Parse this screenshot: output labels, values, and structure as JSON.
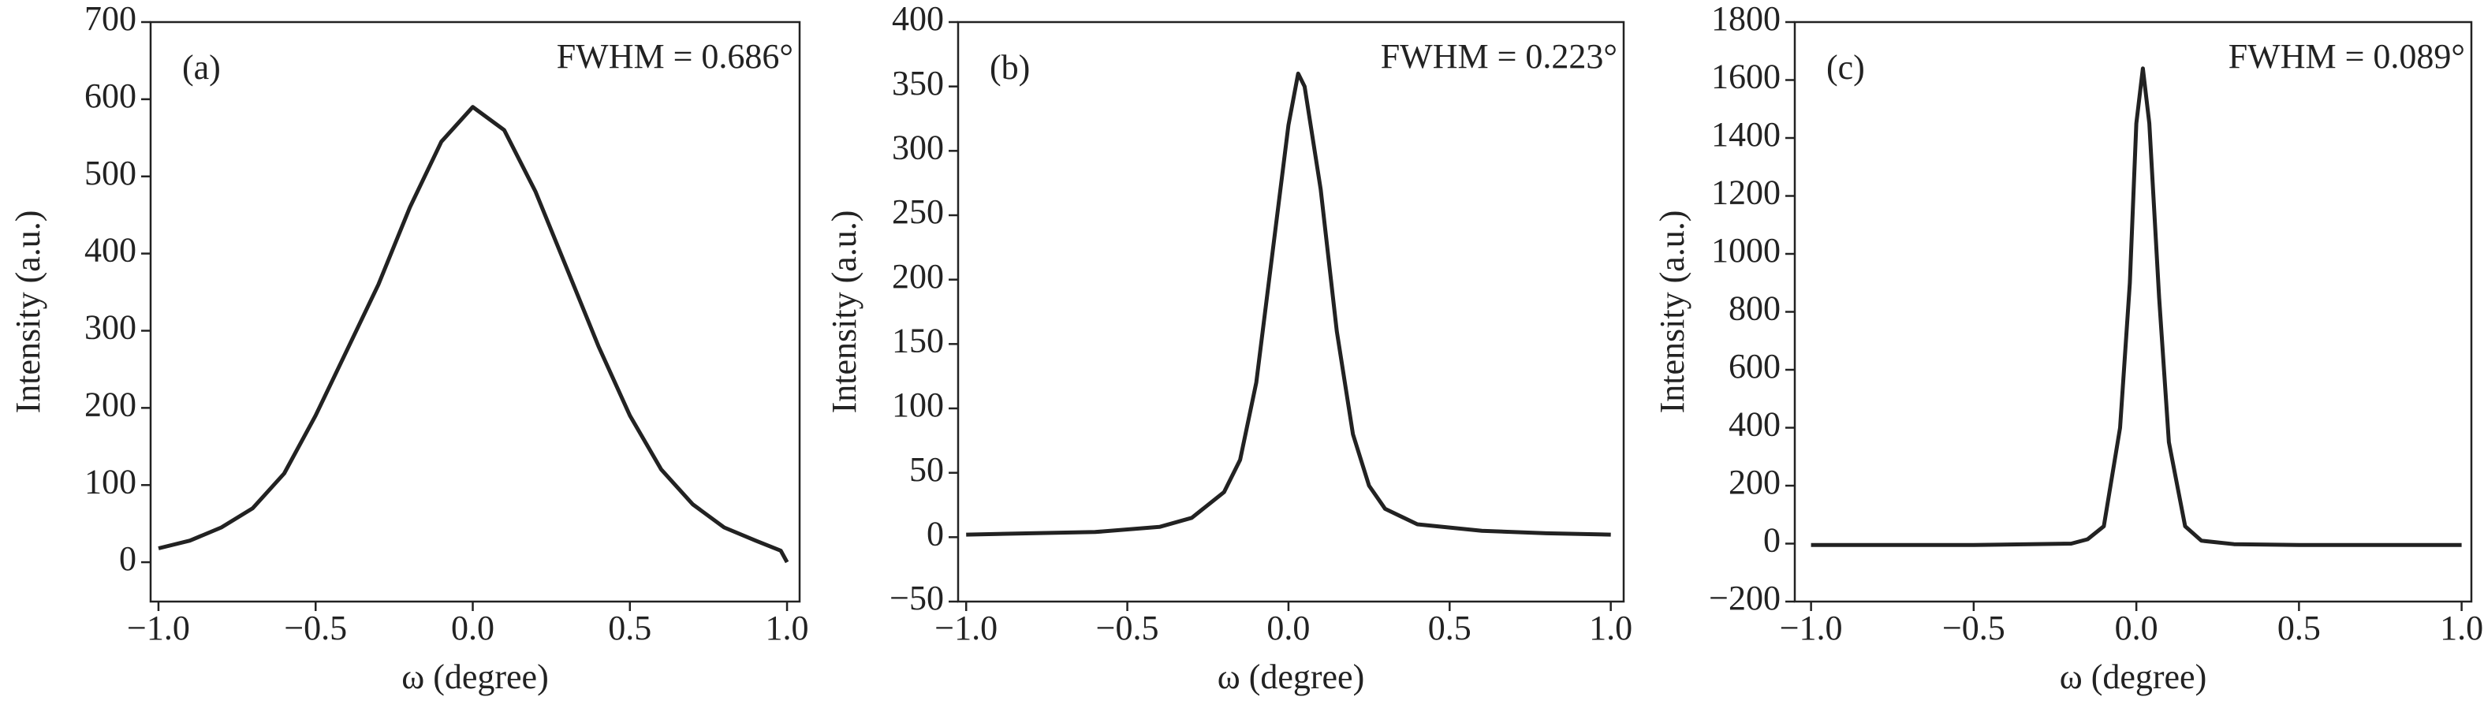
{
  "chart_data": [
    {
      "type": "line",
      "panel_label": "(a)",
      "annotation": "FWHM = 0.686°",
      "x_label": "ω (degree)",
      "y_label": "Intensity (a.u.)",
      "x": [
        -1,
        -0.9,
        -0.8,
        -0.7,
        -0.6,
        -0.5,
        -0.4,
        -0.3,
        -0.2,
        -0.1,
        0,
        0.1,
        0.2,
        0.3,
        0.4,
        0.5,
        0.6,
        0.7,
        0.8,
        0.9,
        0.98,
        1
      ],
      "values": [
        18,
        28,
        45,
        70,
        115,
        190,
        275,
        360,
        460,
        545,
        590,
        560,
        480,
        380,
        280,
        190,
        120,
        75,
        45,
        28,
        15,
        0
      ],
      "color": "#222222",
      "xlim": [
        -1.025,
        1.04
      ],
      "ylim": [
        -51,
        700
      ],
      "xticks": [
        {
          "value": -1,
          "label": "−1.0"
        },
        {
          "value": -0.5,
          "label": "−0.5"
        },
        {
          "value": 0,
          "label": "0.0"
        },
        {
          "value": 0.5,
          "label": "0.5"
        },
        {
          "value": 1,
          "label": "1.0"
        }
      ],
      "yticks": [
        0,
        100,
        200,
        300,
        400,
        500,
        600,
        700
      ]
    },
    {
      "type": "line",
      "panel_label": "(b)",
      "annotation": "FWHM = 0.223°",
      "x_label": "ω (degree)",
      "y_label": "Intensity (a.u.)",
      "x": [
        -1,
        -0.8,
        -0.6,
        -0.4,
        -0.3,
        -0.2,
        -0.15,
        -0.1,
        -0.05,
        0,
        0.03,
        0.05,
        0.1,
        0.15,
        0.2,
        0.25,
        0.3,
        0.4,
        0.6,
        0.8,
        1
      ],
      "values": [
        2,
        3,
        4,
        8,
        15,
        35,
        60,
        120,
        220,
        320,
        360,
        350,
        270,
        160,
        80,
        40,
        22,
        10,
        5,
        3,
        2
      ],
      "color": "#222222",
      "xlim": [
        -1.025,
        1.04
      ],
      "ylim": [
        -50,
        400
      ],
      "xticks": [
        {
          "value": -1,
          "label": "−1.0"
        },
        {
          "value": -0.5,
          "label": "−0.5"
        },
        {
          "value": 0,
          "label": "0.0"
        },
        {
          "value": 0.5,
          "label": "0.5"
        },
        {
          "value": 1,
          "label": "1.0"
        }
      ],
      "yticks": [
        {
          "value": -50,
          "label": "−50"
        },
        0,
        50,
        100,
        150,
        200,
        250,
        300,
        350,
        400
      ]
    },
    {
      "type": "line",
      "panel_label": "(c)",
      "annotation": "FWHM = 0.089°",
      "x_label": "ω (degree)",
      "y_label": "Intensity (a.u.)",
      "x": [
        -1,
        -0.5,
        -0.2,
        -0.15,
        -0.1,
        -0.05,
        -0.02,
        0,
        0.02,
        0.04,
        0.07,
        0.1,
        0.15,
        0.2,
        0.3,
        0.5,
        1
      ],
      "values": [
        -5,
        -5,
        0,
        15,
        60,
        400,
        900,
        1450,
        1640,
        1450,
        850,
        350,
        60,
        10,
        -2,
        -5,
        -5
      ],
      "color": "#222222",
      "xlim": [
        -1.05,
        1.03
      ],
      "ylim": [
        -200,
        1800
      ],
      "xticks": [
        {
          "value": -1,
          "label": "−1.0"
        },
        {
          "value": -0.5,
          "label": "−0.5"
        },
        {
          "value": 0,
          "label": "0.0"
        },
        {
          "value": 0.5,
          "label": "0.5"
        },
        {
          "value": 1,
          "label": "1.0"
        }
      ],
      "yticks": [
        {
          "value": -200,
          "label": "−200"
        },
        0,
        200,
        400,
        600,
        800,
        1000,
        1200,
        1400,
        1600,
        1800
      ]
    }
  ]
}
